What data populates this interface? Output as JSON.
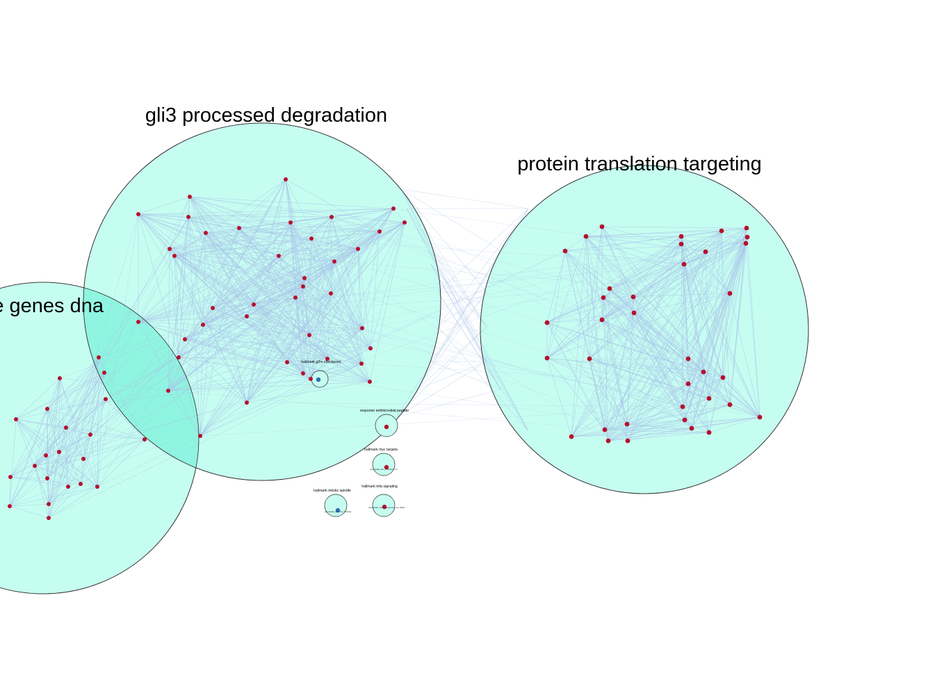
{
  "colors": {
    "cluster_fill": "#c6fdf1",
    "cluster_overlap_fill": "#8ff5e0",
    "cluster_stroke": "#2a2a2a",
    "edge": "#a9c4e8",
    "node_red": "#b5122c",
    "node_blue": "#2b6fb3",
    "background": "#ffffff"
  },
  "clusters": [
    {
      "id": "c_left",
      "title": "te genes dna"
    },
    {
      "id": "c_gli3",
      "title": "gli3 processed degradation"
    },
    {
      "id": "c_protein",
      "title": "protein translation targeting"
    },
    {
      "id": "c_g2m",
      "title": "hallmark g2m checkpoint"
    },
    {
      "id": "c_antimicrobial",
      "title": "response antimicrobial peptide"
    },
    {
      "id": "c_myc",
      "title": "hallmark myc targets"
    },
    {
      "id": "c_spindle",
      "title": "hallmark mitotic spindle"
    },
    {
      "id": "c_tnfa",
      "title": "hallmark tnfa signaling"
    }
  ],
  "small_cluster_nodes": {
    "c_myc": "HALLMARK_MYC_TARGETS_V1",
    "c_spindle": "HALLMARK_MITOTIC_SPINDLE",
    "c_tnfa": "HALLMARK_TNFA_SIGNALING_VIA_NFKB"
  }
}
